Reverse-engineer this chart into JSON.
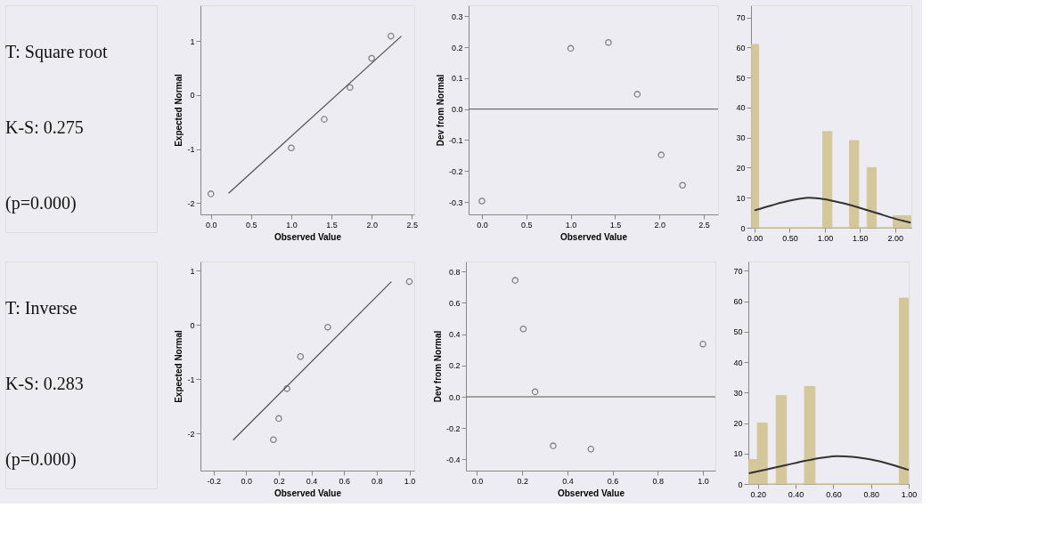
{
  "chart_data": [
    {
      "type": "other",
      "annotations": [
        "T: Square root",
        "K-S: 0.275",
        "(p=0.000)"
      ]
    },
    {
      "type": "scatter",
      "xlabel": "Observed Value",
      "ylabel": "Expected Normal",
      "grid": false,
      "xlim": [
        -0.13,
        2.53
      ],
      "ylim": [
        -2.21,
        1.66
      ],
      "xticks": [
        {
          "value": 0,
          "label": "0.0"
        },
        {
          "value": 0.5,
          "label": "0.5"
        },
        {
          "value": 1,
          "label": "1.0"
        },
        {
          "value": 1.5,
          "label": "1.5"
        },
        {
          "value": 2,
          "label": "2.0"
        },
        {
          "value": 2.5,
          "label": "2.5"
        }
      ],
      "yticks": [
        -2,
        -1,
        0,
        1
      ],
      "series": [
        {
          "type": "scatter",
          "marker": "circle",
          "color": "#555555",
          "x": [
            0,
            1.0,
            1.41,
            1.73,
            2.0,
            2.24
          ],
          "values": [
            -1.83,
            -0.98,
            -0.45,
            0.14,
            0.68,
            1.09
          ]
        },
        {
          "type": "line",
          "color": "#555555",
          "x": [
            0.22,
            2.37
          ],
          "values": [
            -1.82,
            1.09
          ]
        }
      ]
    },
    {
      "type": "scatter",
      "xlabel": "Observed Value",
      "ylabel": "Dev from Normal",
      "grid": false,
      "xlim": [
        -0.15,
        2.66
      ],
      "ylim": [
        -0.34,
        0.335
      ],
      "xticks": [
        {
          "value": 0,
          "label": "0.0"
        },
        {
          "value": 0.5,
          "label": "0.5"
        },
        {
          "value": 1,
          "label": "1.0"
        },
        {
          "value": 1.5,
          "label": "1.5"
        },
        {
          "value": 2,
          "label": "2.0"
        },
        {
          "value": 2.5,
          "label": "2.5"
        }
      ],
      "yticks": [
        -0.3,
        -0.2,
        -0.1,
        {
          "value": 0,
          "label": "0.0"
        },
        0.1,
        0.2,
        0.3
      ],
      "ref_lines": [
        {
          "axis": "y",
          "value": 0,
          "color": "#555555"
        }
      ],
      "series": [
        {
          "type": "scatter",
          "marker": "circle",
          "color": "#555555",
          "x": [
            0,
            1.0,
            1.425,
            1.75,
            2.02,
            2.26
          ],
          "values": [
            -0.297,
            0.196,
            0.215,
            0.048,
            -0.148,
            -0.246
          ]
        }
      ]
    },
    {
      "type": "histogram",
      "grid": false,
      "xlim": [
        -0.05,
        2.23
      ],
      "ylim": [
        0,
        74
      ],
      "xticks": [
        {
          "value": 0,
          "label": "0.00"
        },
        {
          "value": 0.5,
          "label": "0.50"
        },
        {
          "value": 1,
          "label": "1.00"
        },
        {
          "value": 1.5,
          "label": "1.50"
        },
        {
          "value": 2,
          "label": "2.00"
        }
      ],
      "yticks": [
        0,
        10,
        20,
        30,
        40,
        50,
        60,
        70
      ],
      "color": "#d4c79a",
      "bins": [
        -0.04,
        0.06,
        0.97,
        1.1,
        1.35,
        1.48,
        1.6,
        1.73,
        1.97,
        2.22
      ],
      "values": [
        61,
        0,
        32,
        0,
        29,
        0,
        20,
        0,
        4
      ],
      "series": [
        {
          "type": "line",
          "color": "#333333",
          "x": [
            0,
            0.25,
            0.5,
            0.77,
            1.0,
            1.25,
            1.5,
            1.75,
            2.0,
            2.22
          ],
          "values": [
            5.8,
            7.5,
            9.0,
            10.0,
            9.5,
            8.2,
            6.6,
            4.8,
            3.0,
            1.7
          ]
        }
      ]
    },
    {
      "type": "other",
      "annotations": [
        "T: Inverse",
        "K-S: 0.283",
        "(p=0.000)"
      ]
    },
    {
      "type": "scatter",
      "xlabel": "Observed Value",
      "ylabel": "Expected Normal",
      "grid": false,
      "xlim": [
        -0.28,
        1.03
      ],
      "ylim": [
        -2.68,
        1.17
      ],
      "xticks": [
        -0.2,
        {
          "value": 0,
          "label": "0.0"
        },
        0.2,
        0.4,
        0.6,
        0.8,
        {
          "value": 1,
          "label": "1.0"
        }
      ],
      "yticks": [
        -2,
        -1,
        0,
        1
      ],
      "series": [
        {
          "type": "scatter",
          "marker": "circle",
          "color": "#555555",
          "x": [
            0.167,
            0.2,
            0.25,
            0.333,
            0.5,
            1.0
          ],
          "values": [
            -2.11,
            -1.72,
            -1.17,
            -0.58,
            -0.04,
            0.8
          ]
        },
        {
          "type": "line",
          "color": "#555555",
          "x": [
            -0.08,
            0.89
          ],
          "values": [
            -2.12,
            0.8
          ]
        }
      ]
    },
    {
      "type": "scatter",
      "xlabel": "Observed Value",
      "ylabel": "Dev from Normal",
      "grid": false,
      "xlim": [
        -0.049,
        1.055
      ],
      "ylim": [
        -0.471,
        0.863
      ],
      "xticks": [
        {
          "value": 0,
          "label": "0.0"
        },
        0.2,
        0.4,
        0.6,
        0.8,
        {
          "value": 1,
          "label": "1.0"
        }
      ],
      "yticks": [
        -0.4,
        -0.2,
        {
          "value": 0,
          "label": "0.0"
        },
        0.2,
        0.4,
        0.6,
        0.8
      ],
      "ref_lines": [
        {
          "axis": "y",
          "value": 0,
          "color": "#555555"
        }
      ],
      "series": [
        {
          "type": "scatter",
          "marker": "circle",
          "color": "#555555",
          "x": [
            0.169,
            0.205,
            0.257,
            0.337,
            0.504,
            1.0
          ],
          "values": [
            0.743,
            0.433,
            0.032,
            -0.313,
            -0.334,
            0.336
          ]
        }
      ]
    },
    {
      "type": "histogram",
      "grid": false,
      "xlim": [
        0.149,
        1.0
      ],
      "ylim": [
        0,
        73
      ],
      "xticks": [
        {
          "value": 0.2,
          "label": "0.20"
        },
        {
          "value": 0.4,
          "label": "0.40"
        },
        {
          "value": 0.6,
          "label": "0.60"
        },
        {
          "value": 0.8,
          "label": "0.80"
        },
        {
          "value": 1,
          "label": "1.00"
        }
      ],
      "yticks": [
        0,
        10,
        20,
        30,
        40,
        50,
        60,
        70
      ],
      "color": "#d4c79a",
      "bins": [
        0.152,
        0.197,
        0.249,
        0.297,
        0.351,
        0.447,
        0.503,
        0.95,
        0.997
      ],
      "values": [
        8,
        20,
        0,
        29,
        0,
        32,
        0,
        61
      ],
      "series": [
        {
          "type": "line",
          "color": "#333333",
          "x": [
            0.152,
            0.25,
            0.35,
            0.45,
            0.55,
            0.62,
            0.7,
            0.8,
            0.9,
            1.0
          ],
          "values": [
            3.5,
            4.8,
            6.2,
            7.6,
            8.7,
            9.1,
            8.9,
            8.0,
            6.5,
            4.6
          ]
        }
      ]
    }
  ]
}
